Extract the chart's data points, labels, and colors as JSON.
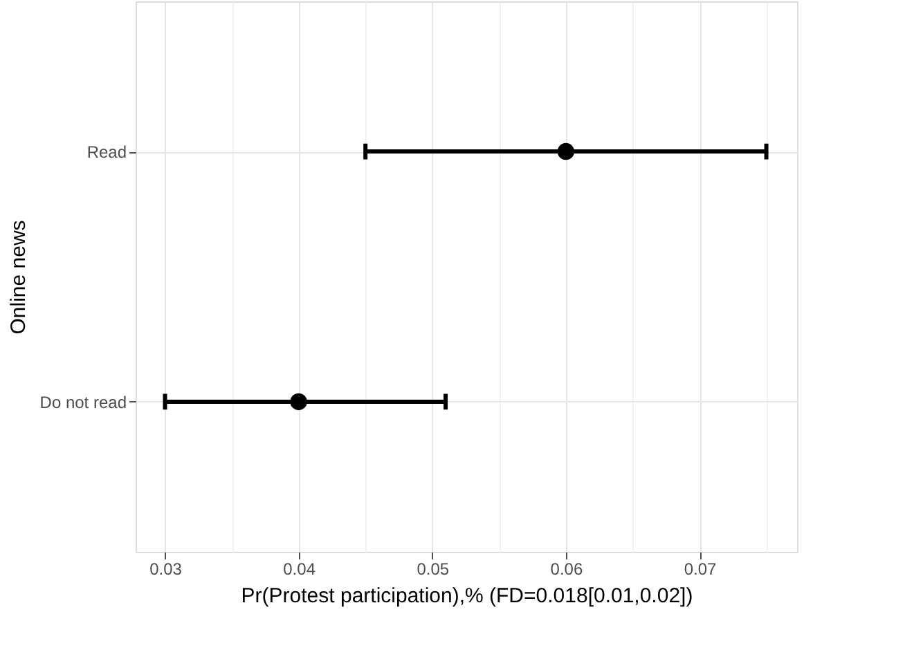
{
  "chart_data": {
    "type": "scatter",
    "orientation": "horizontal",
    "xlabel": "Pr(Protest participation),% (FD=0.018[0.01,0.02])",
    "ylabel": "Online news",
    "categories": [
      "Read",
      "Do not read"
    ],
    "series": [
      {
        "color": "#000000",
        "values": [
          0.06,
          0.04
        ],
        "errors": [
          [
            0.045,
            0.075
          ],
          [
            0.03,
            0.051
          ]
        ]
      }
    ],
    "xlim": [
      0.0278,
      0.0773
    ],
    "xticks": [
      0.03,
      {
        "value": 0.035,
        "label": null
      },
      0.04,
      {
        "value": 0.045,
        "label": null
      },
      0.05,
      {
        "value": 0.055,
        "label": null
      },
      0.06,
      {
        "value": 0.065,
        "label": null
      },
      0.07,
      {
        "value": 0.075,
        "label": null
      }
    ],
    "grid": true,
    "marker": "circle"
  }
}
